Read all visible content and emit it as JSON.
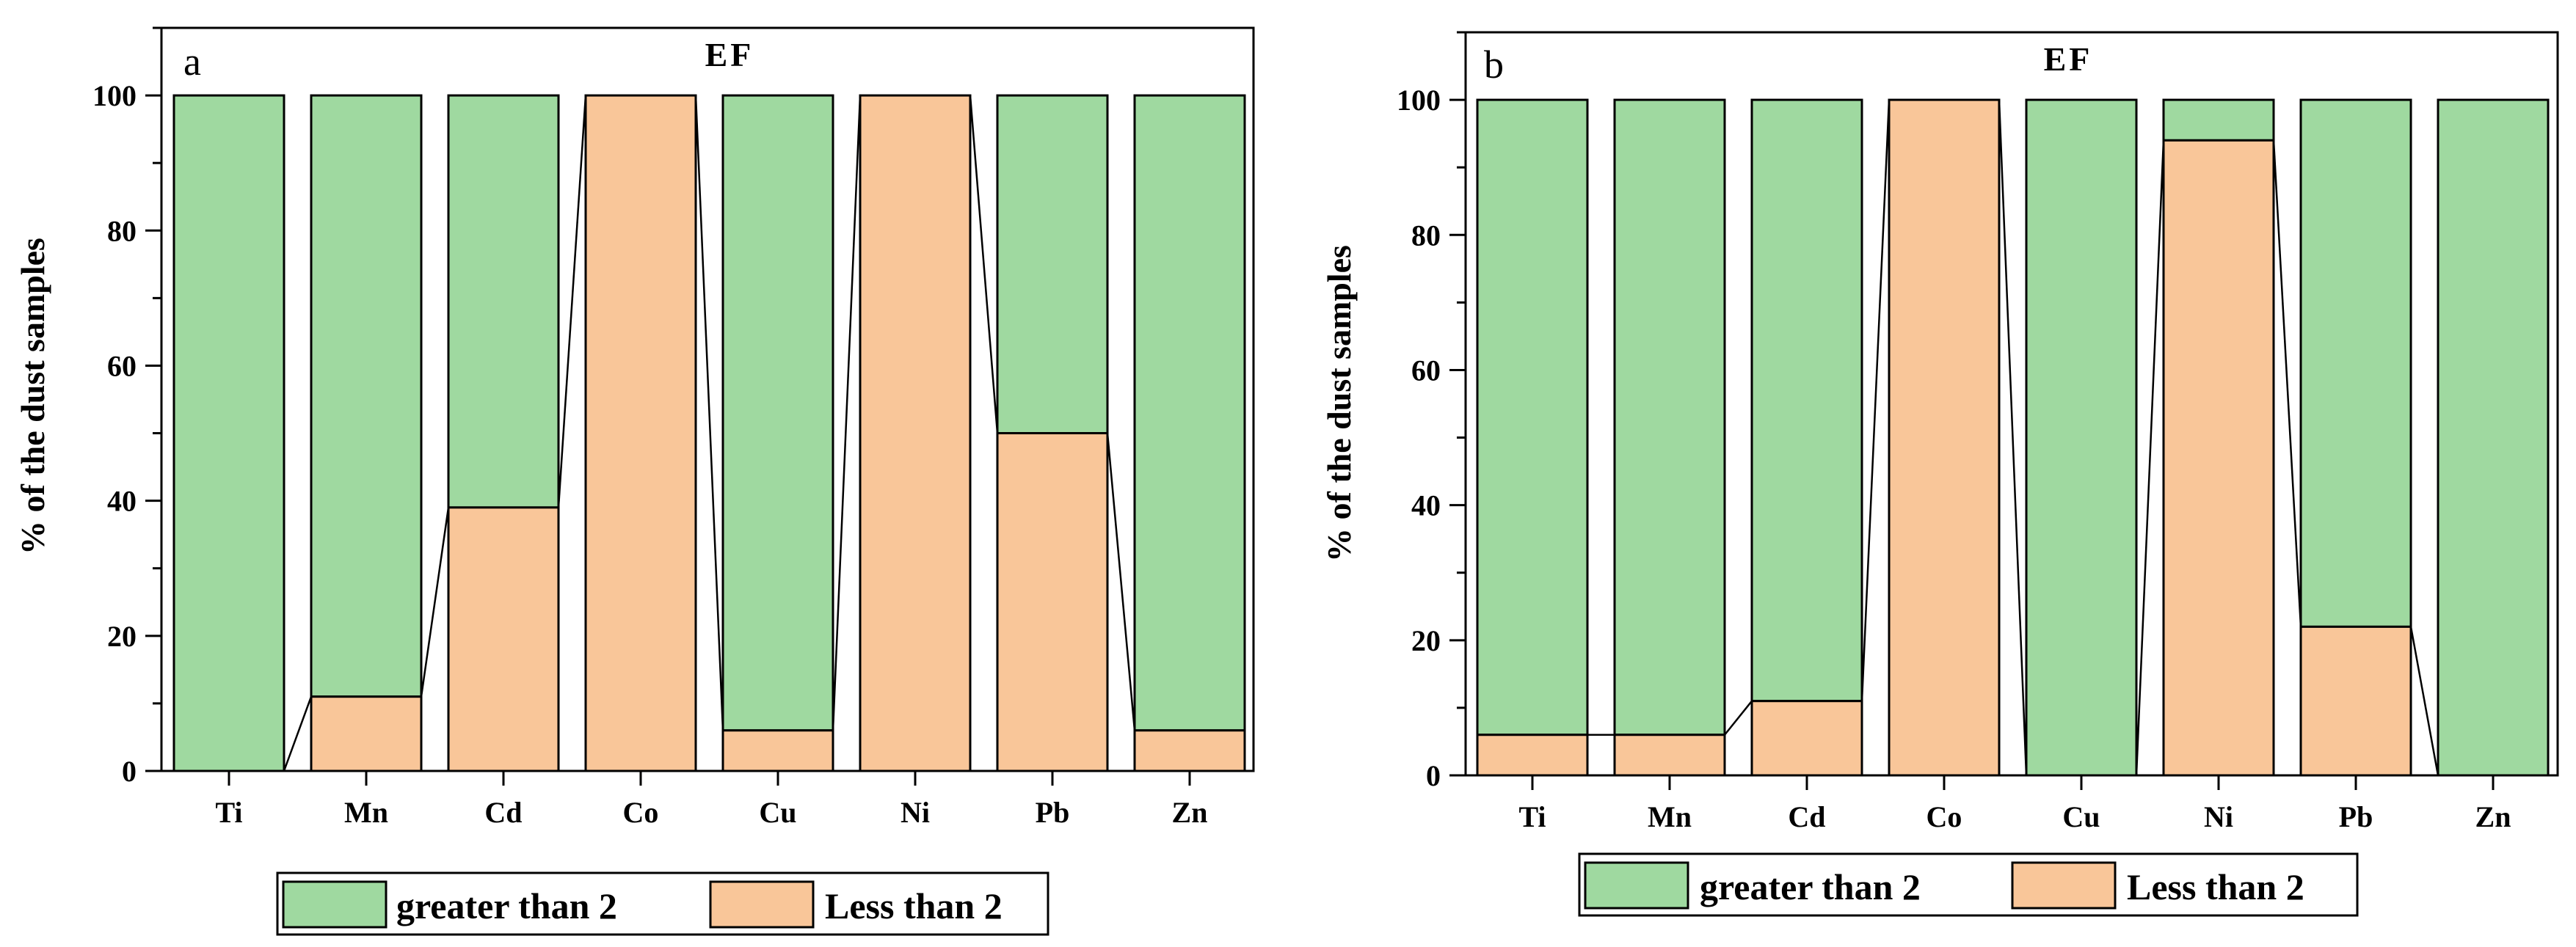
{
  "colors": {
    "greater": "#9fd9a0",
    "less": "#f9c699",
    "axis": "#000000"
  },
  "legend": {
    "greater": "greater than 2",
    "less": "Less than 2"
  },
  "chart_data": [
    {
      "type": "bar",
      "panel": "a",
      "title": "EF",
      "ylabel": "% of the dust samples",
      "xlabel": "",
      "ylim": [
        0,
        110
      ],
      "yticks": [
        "0",
        "20",
        "40",
        "60",
        "80",
        "100"
      ],
      "categories": [
        "Ti",
        "Mn",
        "Cd",
        "Co",
        "Cu",
        "Ni",
        "Pb",
        "Zn"
      ],
      "series": [
        {
          "name": "Less than 2",
          "values": [
            0,
            11,
            39,
            100,
            6,
            100,
            50,
            6
          ]
        },
        {
          "name": "greater than 2",
          "values": [
            100,
            89,
            61,
            0,
            94,
            0,
            50,
            94
          ]
        }
      ]
    },
    {
      "type": "bar",
      "panel": "b",
      "title": "EF",
      "ylabel": "% of the dust samples",
      "xlabel": "",
      "ylim": [
        0,
        110
      ],
      "yticks": [
        "0",
        "20",
        "40",
        "60",
        "80",
        "100"
      ],
      "categories": [
        "Ti",
        "Mn",
        "Cd",
        "Co",
        "Cu",
        "Ni",
        "Pb",
        "Zn"
      ],
      "series": [
        {
          "name": "Less than 2",
          "values": [
            6,
            6,
            11,
            100,
            0,
            94,
            22,
            0
          ]
        },
        {
          "name": "greater than 2",
          "values": [
            94,
            94,
            89,
            0,
            100,
            6,
            78,
            100
          ]
        }
      ]
    }
  ]
}
